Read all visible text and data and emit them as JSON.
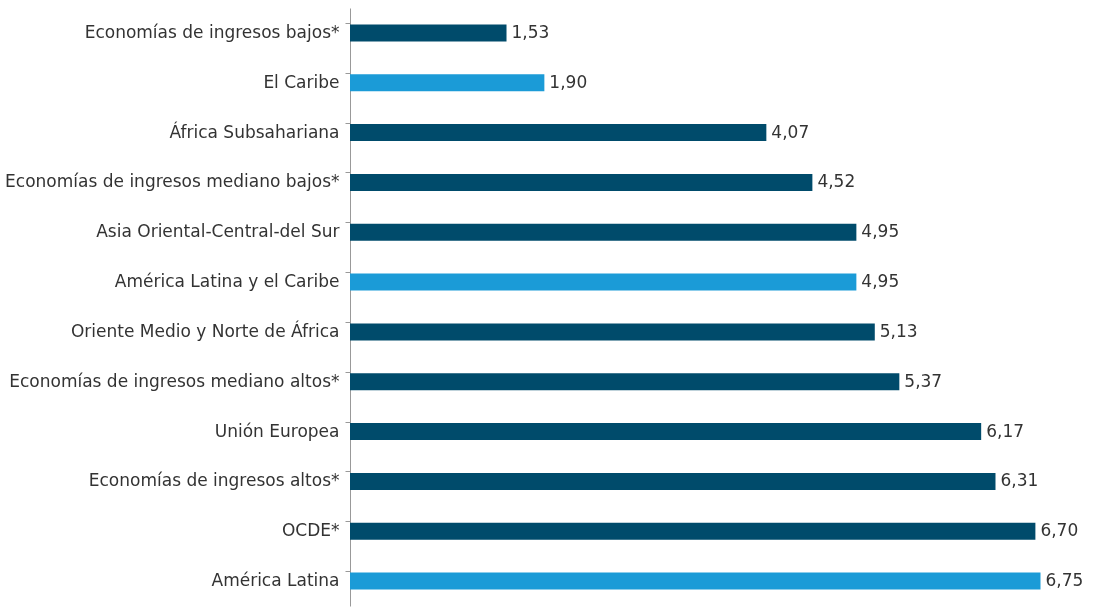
{
  "chart_data": {
    "type": "bar",
    "orientation": "horizontal",
    "categories": [
      "Economías de ingresos bajos*",
      "El Caribe",
      "África Subsahariana",
      "Economías de ingresos mediano bajos*",
      "Asia Oriental-Central-del Sur",
      "América Latina y el Caribe",
      "Oriente Medio y Norte de África",
      "Economías de ingresos mediano altos*",
      "Unión Europea",
      "Economías de ingresos altos*",
      "OCDE*",
      "América Latina"
    ],
    "values": [
      1.53,
      1.9,
      4.07,
      4.52,
      4.95,
      4.95,
      5.13,
      5.37,
      6.17,
      6.31,
      6.7,
      6.75
    ],
    "colors": [
      "#004b6b",
      "#1b9bd7",
      "#004b6b",
      "#004b6b",
      "#004b6b",
      "#1b9bd7",
      "#004b6b",
      "#004b6b",
      "#004b6b",
      "#004b6b",
      "#004b6b",
      "#1b9bd7"
    ],
    "value_labels": [
      "1,53",
      "1,90",
      "4,07",
      "4,52",
      "4,95",
      "4,95",
      "5,13",
      "5,37",
      "6,17",
      "6,31",
      "6,70",
      "6,75"
    ],
    "xlim": [
      0,
      7.4
    ],
    "tick_labels": "y"
  }
}
